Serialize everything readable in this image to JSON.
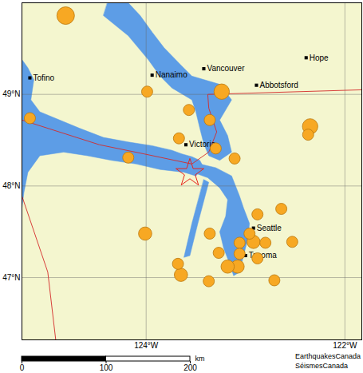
{
  "chart_data": {
    "type": "map",
    "xlim": [
      -125.25,
      -121.83
    ],
    "ylim": [
      46.32,
      50.0
    ],
    "xticks": [
      {
        "value": -124,
        "label": "124°W"
      },
      {
        "value": -122,
        "label": "122°W"
      }
    ],
    "yticks": [
      {
        "value": 47,
        "label": "47°N"
      },
      {
        "value": 48,
        "label": "48°N"
      },
      {
        "value": 49,
        "label": "49°N"
      }
    ],
    "grid": true,
    "land": {
      "color": "#f4f6cf"
    },
    "water": {
      "color": "#5d9de6",
      "polygons": [
        [
          [
            -125.3,
            49.38
          ],
          [
            -125.25,
            49.38
          ],
          [
            -125.19,
            49.29
          ],
          [
            -125.13,
            49.16
          ],
          [
            -125.16,
            48.94
          ],
          [
            -125.07,
            48.81
          ],
          [
            -124.87,
            48.72
          ],
          [
            -124.67,
            48.63
          ],
          [
            -124.43,
            48.53
          ],
          [
            -124.18,
            48.48
          ],
          [
            -123.94,
            48.44
          ],
          [
            -123.74,
            48.39
          ],
          [
            -123.64,
            48.35
          ],
          [
            -123.54,
            48.32
          ],
          [
            -123.46,
            48.28
          ],
          [
            -123.42,
            48.2
          ],
          [
            -123.5,
            48.11
          ],
          [
            -123.62,
            48.15
          ],
          [
            -123.86,
            48.18
          ],
          [
            -124.1,
            48.24
          ],
          [
            -124.35,
            48.28
          ],
          [
            -124.59,
            48.33
          ],
          [
            -124.83,
            48.37
          ],
          [
            -125.07,
            48.33
          ],
          [
            -125.19,
            48.15
          ],
          [
            -125.23,
            47.93
          ],
          [
            -125.25,
            47.76
          ],
          [
            -125.3,
            47.76
          ]
        ],
        [
          [
            -124.43,
            49.86
          ],
          [
            -124.18,
            49.64
          ],
          [
            -123.98,
            49.38
          ],
          [
            -123.86,
            49.2
          ],
          [
            -123.74,
            49.07
          ],
          [
            -123.54,
            48.94
          ],
          [
            -123.5,
            48.81
          ],
          [
            -123.46,
            48.63
          ],
          [
            -123.42,
            48.46
          ],
          [
            -123.37,
            48.33
          ],
          [
            -123.26,
            48.28
          ],
          [
            -123.14,
            48.37
          ],
          [
            -123.18,
            48.55
          ],
          [
            -123.26,
            48.72
          ],
          [
            -123.14,
            48.94
          ],
          [
            -123.26,
            49.11
          ],
          [
            -123.54,
            49.2
          ],
          [
            -123.66,
            49.33
          ],
          [
            -123.82,
            49.51
          ],
          [
            -123.94,
            49.68
          ],
          [
            -124.06,
            49.86
          ],
          [
            -124.18,
            50.0
          ],
          [
            -124.39,
            50.0
          ]
        ],
        [
          [
            -123.46,
            48.24
          ],
          [
            -123.3,
            48.2
          ],
          [
            -123.14,
            48.11
          ],
          [
            -123.06,
            47.89
          ],
          [
            -123.02,
            47.76
          ],
          [
            -122.96,
            47.59
          ],
          [
            -122.98,
            47.41
          ],
          [
            -123.02,
            47.24
          ],
          [
            -123.06,
            47.06
          ],
          [
            -123.12,
            47.02
          ],
          [
            -123.16,
            47.15
          ],
          [
            -123.22,
            47.32
          ],
          [
            -123.26,
            47.5
          ],
          [
            -123.2,
            47.67
          ],
          [
            -123.18,
            47.85
          ],
          [
            -123.26,
            47.98
          ],
          [
            -123.38,
            48.09
          ],
          [
            -123.48,
            48.13
          ]
        ],
        [
          [
            -123.42,
            48.07
          ],
          [
            -123.37,
            48.04
          ],
          [
            -123.48,
            47.59
          ],
          [
            -123.56,
            47.24
          ],
          [
            -123.62,
            47.22
          ],
          [
            -123.54,
            47.59
          ]
        ]
      ]
    },
    "borders": {
      "color": "#d42a2a",
      "lines": [
        [
          [
            -121.83,
            49.05
          ],
          [
            -123.38,
            49.0
          ],
          [
            -123.37,
            48.85
          ],
          [
            -123.29,
            48.59
          ],
          [
            -123.37,
            48.37
          ],
          [
            -123.54,
            48.24
          ],
          [
            -124.02,
            48.35
          ],
          [
            -124.47,
            48.45
          ],
          [
            -125.25,
            48.72
          ]
        ],
        [
          [
            -125.25,
            47.89
          ],
          [
            -124.99,
            47.06
          ],
          [
            -124.91,
            46.32
          ]
        ]
      ]
    },
    "cities": [
      {
        "name": "Tofino",
        "lon": -125.17,
        "lat": 49.18
      },
      {
        "name": "Nanaimo",
        "lon": -123.94,
        "lat": 49.21
      },
      {
        "name": "Vancouver",
        "lon": -123.42,
        "lat": 49.28
      },
      {
        "name": "Hope",
        "lon": -122.39,
        "lat": 49.4
      },
      {
        "name": "Abbotsford",
        "lon": -122.89,
        "lat": 49.1
      },
      {
        "name": "Victoria",
        "lon": -123.6,
        "lat": 48.45
      },
      {
        "name": "Seattle",
        "lon": -122.92,
        "lat": 47.54
      },
      {
        "name": "Tacoma",
        "lon": -123.0,
        "lat": 47.24
      }
    ],
    "earthquakes": {
      "color": "#f7a823",
      "lon": [
        -124.81,
        -125.17,
        -123.99,
        -123.57,
        -123.36,
        -123.24,
        -123.67,
        -123.3,
        -123.11,
        -124.18,
        -122.35,
        -122.37,
        -124.01,
        -123.68,
        -123.65,
        -123.36,
        -122.88,
        -122.64,
        -122.96,
        -123.06,
        -122.92,
        -122.8,
        -123.06,
        -122.88,
        -123.27,
        -122.53,
        -123.08,
        -123.18,
        -122.71,
        -123.37
      ],
      "lat": [
        49.86,
        48.74,
        49.03,
        48.83,
        48.72,
        49.03,
        48.52,
        48.41,
        48.3,
        48.31,
        48.65,
        48.56,
        47.48,
        47.15,
        47.03,
        47.48,
        47.69,
        47.75,
        47.48,
        47.38,
        47.39,
        47.38,
        47.26,
        47.21,
        47.27,
        47.39,
        47.12,
        47.12,
        46.97,
        46.96
      ],
      "magnitude": [
        4.5,
        3.0,
        3.0,
        3.0,
        3.0,
        4.0,
        3.0,
        3.0,
        3.0,
        3.0,
        4.0,
        3.0,
        3.5,
        3.0,
        3.5,
        3.0,
        3.0,
        3.0,
        3.0,
        3.0,
        3.5,
        3.0,
        3.0,
        3.0,
        3.0,
        3.0,
        3.5,
        3.5,
        3.0,
        3.0
      ]
    },
    "epicentre": {
      "lon": -123.56,
      "lat": 48.14,
      "color": "#e8241c",
      "marker": "star"
    },
    "scale_bar": {
      "label": "km",
      "ticks": [
        0,
        100,
        200
      ]
    },
    "credits": [
      "EarthquakesCanada",
      "SéismesCanada"
    ]
  }
}
